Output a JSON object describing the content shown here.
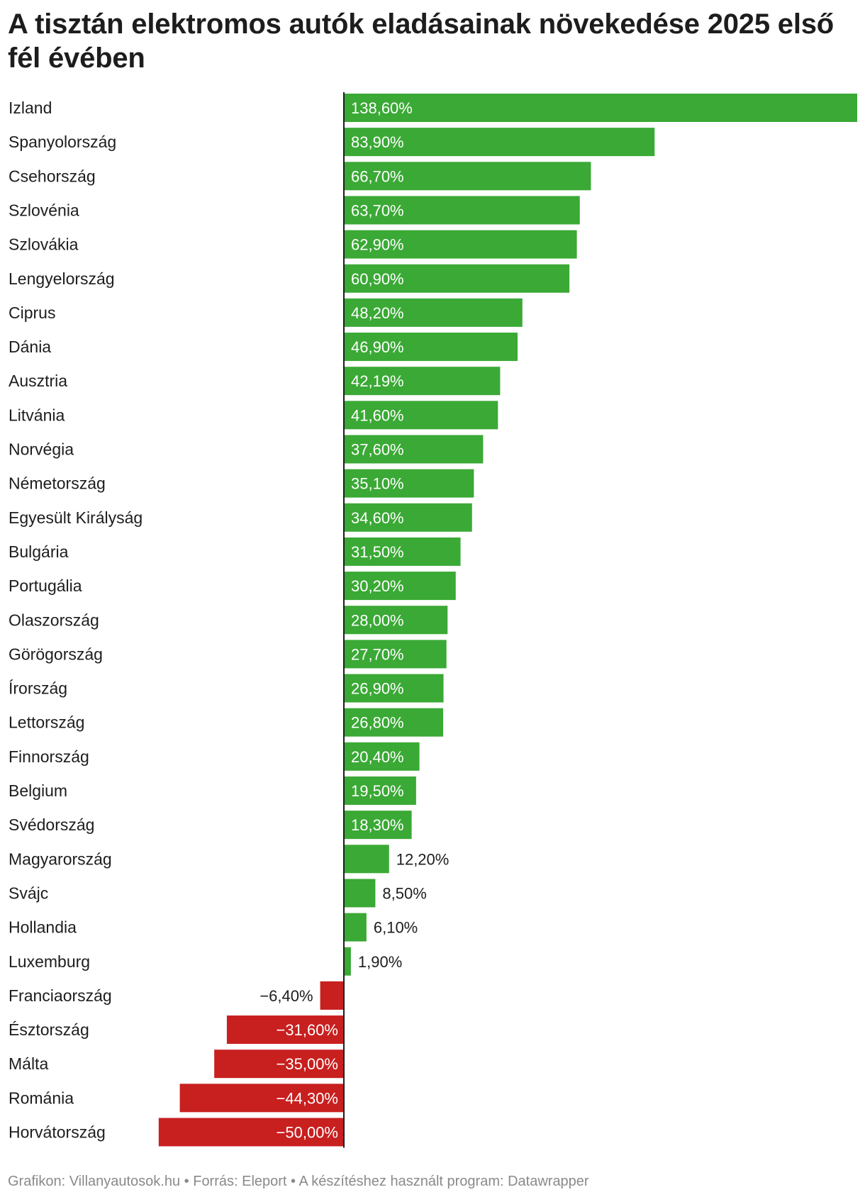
{
  "title": "A tisztán elektromos autók eladásainak növekedése 2025 első fél évében",
  "footer": "Grafikon: Villanyautosok.hu • Forrás: Eleport • A készítéshez használt program: Datawrapper",
  "colors": {
    "positive": "#3aa935",
    "negative": "#c81f1f",
    "axis": "#1d1d1d",
    "text": "#1d1d1d"
  },
  "chart_data": {
    "type": "bar",
    "orientation": "horizontal",
    "title": "A tisztán elektromos autók eladásainak növekedése 2025 első fél évében",
    "xlabel": "",
    "ylabel": "",
    "xlim": [
      -50,
      138.6
    ],
    "grid": false,
    "categories": [
      "Izland",
      "Spanyolország",
      "Csehország",
      "Szlovénia",
      "Szlovákia",
      "Lengyelország",
      "Ciprus",
      "Dánia",
      "Ausztria",
      "Litvánia",
      "Norvégia",
      "Németország",
      "Egyesült Királyság",
      "Bulgária",
      "Portugália",
      "Olaszország",
      "Görögország",
      "Írország",
      "Lettország",
      "Finnország",
      "Belgium",
      "Svédország",
      "Magyarország",
      "Svájc",
      "Hollandia",
      "Luxemburg",
      "Franciaország",
      "Észtország",
      "Málta",
      "Románia",
      "Horvátország"
    ],
    "values": [
      138.6,
      83.9,
      66.7,
      63.7,
      62.9,
      60.9,
      48.2,
      46.9,
      42.19,
      41.6,
      37.6,
      35.1,
      34.6,
      31.5,
      30.2,
      28.0,
      27.7,
      26.9,
      26.8,
      20.4,
      19.5,
      18.3,
      12.2,
      8.5,
      6.1,
      1.9,
      -6.4,
      -31.6,
      -35.0,
      -44.3,
      -50.0
    ],
    "labels": [
      "138,60%",
      "83,90%",
      "66,70%",
      "63,70%",
      "62,90%",
      "60,90%",
      "48,20%",
      "46,90%",
      "42,19%",
      "41,60%",
      "37,60%",
      "35,10%",
      "34,60%",
      "31,50%",
      "30,20%",
      "28,00%",
      "27,70%",
      "26,90%",
      "26,80%",
      "20,40%",
      "19,50%",
      "18,30%",
      "12,20%",
      "8,50%",
      "6,10%",
      "1,90%",
      "−6,40%",
      "−31,60%",
      "−35,00%",
      "−44,30%",
      "−50,00%"
    ]
  }
}
